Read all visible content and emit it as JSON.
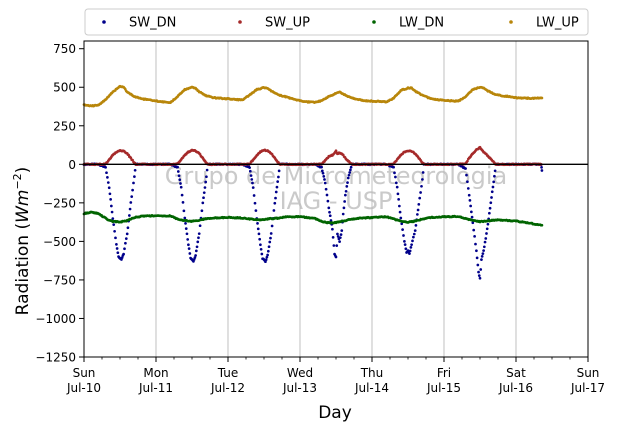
{
  "chart_data": {
    "type": "scatter",
    "xlabel": "Day",
    "ylabel_main": "Radiation (",
    "ylabel_unit": "Wm",
    "ylabel_exp": "−2",
    "ylabel_close": ")",
    "watermark": [
      "Grupo de Micrometeorologia",
      "IAG - USP"
    ],
    "xlim": [
      0,
      7
    ],
    "ylim": [
      -1250,
      800
    ],
    "yticks": [
      {
        "value": 750,
        "label": "750"
      },
      {
        "value": 500,
        "label": "500"
      },
      {
        "value": 250,
        "label": "250"
      },
      {
        "value": 0,
        "label": "0"
      },
      {
        "value": -250,
        "label": "−250"
      },
      {
        "value": -500,
        "label": "−500"
      },
      {
        "value": -750,
        "label": "−750"
      },
      {
        "value": -1000,
        "label": "−1000"
      },
      {
        "value": -1250,
        "label": "−1250"
      }
    ],
    "xticks": [
      {
        "value": 0,
        "day": "Sun",
        "date": "Jul-10"
      },
      {
        "value": 1,
        "day": "Mon",
        "date": "Jul-11"
      },
      {
        "value": 2,
        "day": "Tue",
        "date": "Jul-12"
      },
      {
        "value": 3,
        "day": "Wed",
        "date": "Jul-13"
      },
      {
        "value": 4,
        "day": "Thu",
        "date": "Jul-14"
      },
      {
        "value": 5,
        "day": "Fri",
        "date": "Jul-15"
      },
      {
        "value": 6,
        "day": "Sat",
        "date": "Jul-16"
      },
      {
        "value": 7,
        "day": "Sun",
        "date": "Jul-17"
      }
    ],
    "grid": "vertical",
    "legend_position": "top",
    "series": [
      {
        "name": "SW_DN",
        "color": "#00008b",
        "points": [
          [
            0.0,
            0
          ],
          [
            0.2,
            0
          ],
          [
            0.3,
            -20
          ],
          [
            0.35,
            -150
          ],
          [
            0.4,
            -350
          ],
          [
            0.45,
            -520
          ],
          [
            0.48,
            -600
          ],
          [
            0.52,
            -620
          ],
          [
            0.55,
            -580
          ],
          [
            0.6,
            -450
          ],
          [
            0.65,
            -250
          ],
          [
            0.7,
            -80
          ],
          [
            0.72,
            0
          ],
          [
            0.8,
            0
          ],
          [
            1.0,
            0
          ],
          [
            1.2,
            0
          ],
          [
            1.3,
            -20
          ],
          [
            1.35,
            -150
          ],
          [
            1.4,
            -350
          ],
          [
            1.45,
            -520
          ],
          [
            1.48,
            -610
          ],
          [
            1.52,
            -630
          ],
          [
            1.55,
            -590
          ],
          [
            1.6,
            -450
          ],
          [
            1.65,
            -250
          ],
          [
            1.7,
            -80
          ],
          [
            1.72,
            0
          ],
          [
            1.8,
            0
          ],
          [
            2.0,
            0
          ],
          [
            2.2,
            0
          ],
          [
            2.3,
            -20
          ],
          [
            2.35,
            -150
          ],
          [
            2.4,
            -350
          ],
          [
            2.45,
            -520
          ],
          [
            2.48,
            -610
          ],
          [
            2.52,
            -630
          ],
          [
            2.55,
            -590
          ],
          [
            2.6,
            -450
          ],
          [
            2.65,
            -250
          ],
          [
            2.7,
            -80
          ],
          [
            2.72,
            0
          ],
          [
            2.8,
            0
          ],
          [
            3.0,
            0
          ],
          [
            3.2,
            0
          ],
          [
            3.3,
            -20
          ],
          [
            3.35,
            -120
          ],
          [
            3.4,
            -280
          ],
          [
            3.45,
            -420
          ],
          [
            3.48,
            -580
          ],
          [
            3.5,
            -600
          ],
          [
            3.52,
            -450
          ],
          [
            3.55,
            -500
          ],
          [
            3.58,
            -430
          ],
          [
            3.6,
            -320
          ],
          [
            3.63,
            -200
          ],
          [
            3.67,
            -90
          ],
          [
            3.72,
            0
          ],
          [
            3.8,
            0
          ],
          [
            4.0,
            0
          ],
          [
            4.2,
            0
          ],
          [
            4.3,
            -20
          ],
          [
            4.35,
            -150
          ],
          [
            4.4,
            -350
          ],
          [
            4.45,
            -500
          ],
          [
            4.48,
            -570
          ],
          [
            4.5,
            -560
          ],
          [
            4.52,
            -580
          ],
          [
            4.55,
            -520
          ],
          [
            4.6,
            -430
          ],
          [
            4.65,
            -260
          ],
          [
            4.7,
            -100
          ],
          [
            4.72,
            0
          ],
          [
            4.8,
            0
          ],
          [
            5.0,
            0
          ],
          [
            5.2,
            0
          ],
          [
            5.3,
            -30
          ],
          [
            5.35,
            -200
          ],
          [
            5.4,
            -380
          ],
          [
            5.45,
            -560
          ],
          [
            5.48,
            -700
          ],
          [
            5.5,
            -740
          ],
          [
            5.52,
            -620
          ],
          [
            5.55,
            -560
          ],
          [
            5.58,
            -480
          ],
          [
            5.6,
            -420
          ],
          [
            5.63,
            -320
          ],
          [
            5.67,
            -180
          ],
          [
            5.7,
            -80
          ],
          [
            5.72,
            0
          ],
          [
            5.8,
            0
          ],
          [
            6.0,
            0
          ],
          [
            6.2,
            0
          ],
          [
            6.35,
            0
          ],
          [
            6.36,
            -40
          ]
        ]
      },
      {
        "name": "SW_UP",
        "color": "#a52a2a",
        "points": [
          [
            0.0,
            0
          ],
          [
            0.2,
            0
          ],
          [
            0.3,
            2
          ],
          [
            0.35,
            30
          ],
          [
            0.4,
            60
          ],
          [
            0.45,
            80
          ],
          [
            0.5,
            90
          ],
          [
            0.55,
            85
          ],
          [
            0.6,
            70
          ],
          [
            0.65,
            40
          ],
          [
            0.7,
            10
          ],
          [
            0.72,
            0
          ],
          [
            0.8,
            0
          ],
          [
            1.0,
            0
          ],
          [
            1.2,
            0
          ],
          [
            1.3,
            2
          ],
          [
            1.35,
            30
          ],
          [
            1.4,
            60
          ],
          [
            1.45,
            80
          ],
          [
            1.5,
            92
          ],
          [
            1.55,
            88
          ],
          [
            1.6,
            70
          ],
          [
            1.65,
            40
          ],
          [
            1.7,
            10
          ],
          [
            1.72,
            0
          ],
          [
            1.8,
            0
          ],
          [
            2.0,
            0
          ],
          [
            2.2,
            0
          ],
          [
            2.3,
            2
          ],
          [
            2.35,
            30
          ],
          [
            2.4,
            60
          ],
          [
            2.45,
            82
          ],
          [
            2.5,
            92
          ],
          [
            2.55,
            88
          ],
          [
            2.6,
            70
          ],
          [
            2.65,
            40
          ],
          [
            2.7,
            10
          ],
          [
            2.72,
            0
          ],
          [
            2.8,
            0
          ],
          [
            3.0,
            0
          ],
          [
            3.2,
            0
          ],
          [
            3.3,
            2
          ],
          [
            3.35,
            25
          ],
          [
            3.4,
            50
          ],
          [
            3.45,
            60
          ],
          [
            3.5,
            85
          ],
          [
            3.52,
            70
          ],
          [
            3.55,
            75
          ],
          [
            3.6,
            60
          ],
          [
            3.65,
            30
          ],
          [
            3.7,
            8
          ],
          [
            3.72,
            0
          ],
          [
            3.8,
            0
          ],
          [
            4.0,
            0
          ],
          [
            4.2,
            0
          ],
          [
            4.3,
            2
          ],
          [
            4.35,
            30
          ],
          [
            4.4,
            60
          ],
          [
            4.45,
            80
          ],
          [
            4.5,
            88
          ],
          [
            4.55,
            85
          ],
          [
            4.6,
            70
          ],
          [
            4.65,
            40
          ],
          [
            4.7,
            10
          ],
          [
            4.72,
            0
          ],
          [
            4.8,
            0
          ],
          [
            5.0,
            0
          ],
          [
            5.2,
            0
          ],
          [
            5.3,
            5
          ],
          [
            5.35,
            40
          ],
          [
            5.4,
            70
          ],
          [
            5.45,
            95
          ],
          [
            5.5,
            110
          ],
          [
            5.52,
            95
          ],
          [
            5.55,
            80
          ],
          [
            5.6,
            60
          ],
          [
            5.65,
            35
          ],
          [
            5.7,
            10
          ],
          [
            5.72,
            0
          ],
          [
            5.8,
            0
          ],
          [
            6.0,
            0
          ],
          [
            6.2,
            0
          ],
          [
            6.35,
            0
          ]
        ]
      },
      {
        "name": "LW_DN",
        "color": "#006400",
        "points": [
          [
            0.0,
            -320
          ],
          [
            0.1,
            -310
          ],
          [
            0.2,
            -320
          ],
          [
            0.3,
            -350
          ],
          [
            0.35,
            -365
          ],
          [
            0.4,
            -370
          ],
          [
            0.5,
            -375
          ],
          [
            0.6,
            -365
          ],
          [
            0.7,
            -345
          ],
          [
            0.8,
            -338
          ],
          [
            0.9,
            -335
          ],
          [
            1.0,
            -333
          ],
          [
            1.2,
            -335
          ],
          [
            1.3,
            -355
          ],
          [
            1.4,
            -365
          ],
          [
            1.5,
            -370
          ],
          [
            1.6,
            -362
          ],
          [
            1.7,
            -352
          ],
          [
            1.8,
            -348
          ],
          [
            2.0,
            -345
          ],
          [
            2.2,
            -348
          ],
          [
            2.3,
            -355
          ],
          [
            2.4,
            -360
          ],
          [
            2.5,
            -358
          ],
          [
            2.6,
            -352
          ],
          [
            2.7,
            -350
          ],
          [
            2.8,
            -340
          ],
          [
            3.0,
            -340
          ],
          [
            3.2,
            -350
          ],
          [
            3.3,
            -370
          ],
          [
            3.4,
            -380
          ],
          [
            3.5,
            -378
          ],
          [
            3.6,
            -368
          ],
          [
            3.7,
            -358
          ],
          [
            3.8,
            -350
          ],
          [
            4.0,
            -345
          ],
          [
            4.2,
            -340
          ],
          [
            4.3,
            -355
          ],
          [
            4.4,
            -368
          ],
          [
            4.5,
            -375
          ],
          [
            4.6,
            -368
          ],
          [
            4.7,
            -355
          ],
          [
            4.8,
            -345
          ],
          [
            5.0,
            -340
          ],
          [
            5.2,
            -338
          ],
          [
            5.3,
            -352
          ],
          [
            5.4,
            -365
          ],
          [
            5.5,
            -372
          ],
          [
            5.6,
            -368
          ],
          [
            5.7,
            -362
          ],
          [
            5.8,
            -362
          ],
          [
            6.0,
            -368
          ],
          [
            6.2,
            -382
          ],
          [
            6.3,
            -392
          ],
          [
            6.36,
            -395
          ]
        ]
      },
      {
        "name": "LW_UP",
        "color": "#b8860b",
        "points": [
          [
            0.0,
            385
          ],
          [
            0.1,
            380
          ],
          [
            0.2,
            382
          ],
          [
            0.3,
            420
          ],
          [
            0.4,
            470
          ],
          [
            0.5,
            505
          ],
          [
            0.55,
            500
          ],
          [
            0.6,
            470
          ],
          [
            0.7,
            440
          ],
          [
            0.8,
            425
          ],
          [
            0.9,
            418
          ],
          [
            1.0,
            412
          ],
          [
            1.1,
            405
          ],
          [
            1.2,
            400
          ],
          [
            1.3,
            440
          ],
          [
            1.4,
            485
          ],
          [
            1.5,
            500
          ],
          [
            1.55,
            495
          ],
          [
            1.6,
            470
          ],
          [
            1.7,
            445
          ],
          [
            1.8,
            432
          ],
          [
            1.9,
            428
          ],
          [
            2.0,
            425
          ],
          [
            2.1,
            420
          ],
          [
            2.2,
            418
          ],
          [
            2.3,
            450
          ],
          [
            2.4,
            485
          ],
          [
            2.5,
            498
          ],
          [
            2.55,
            495
          ],
          [
            2.6,
            475
          ],
          [
            2.7,
            450
          ],
          [
            2.8,
            438
          ],
          [
            2.9,
            425
          ],
          [
            3.0,
            412
          ],
          [
            3.1,
            405
          ],
          [
            3.2,
            402
          ],
          [
            3.3,
            412
          ],
          [
            3.4,
            440
          ],
          [
            3.5,
            460
          ],
          [
            3.55,
            470
          ],
          [
            3.6,
            455
          ],
          [
            3.7,
            435
          ],
          [
            3.8,
            420
          ],
          [
            3.9,
            413
          ],
          [
            4.0,
            410
          ],
          [
            4.1,
            408
          ],
          [
            4.2,
            405
          ],
          [
            4.3,
            430
          ],
          [
            4.4,
            480
          ],
          [
            4.5,
            495
          ],
          [
            4.55,
            495
          ],
          [
            4.6,
            475
          ],
          [
            4.7,
            448
          ],
          [
            4.8,
            428
          ],
          [
            4.9,
            420
          ],
          [
            5.0,
            415
          ],
          [
            5.1,
            412
          ],
          [
            5.2,
            410
          ],
          [
            5.3,
            440
          ],
          [
            5.4,
            485
          ],
          [
            5.5,
            500
          ],
          [
            5.55,
            495
          ],
          [
            5.6,
            478
          ],
          [
            5.7,
            455
          ],
          [
            5.8,
            445
          ],
          [
            5.9,
            440
          ],
          [
            6.0,
            432
          ],
          [
            6.1,
            430
          ],
          [
            6.2,
            428
          ],
          [
            6.36,
            430
          ]
        ]
      }
    ]
  }
}
